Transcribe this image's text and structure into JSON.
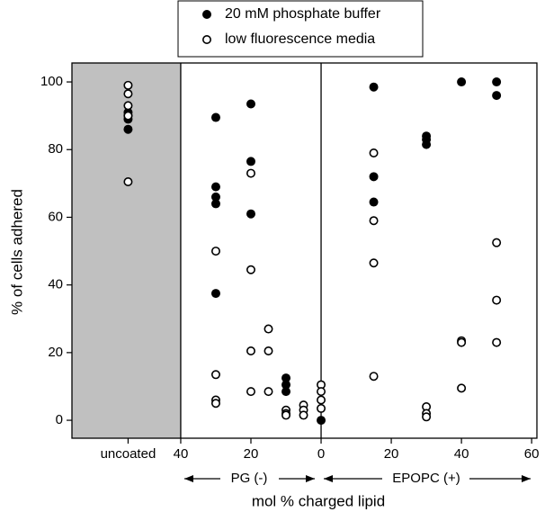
{
  "chart_data": {
    "type": "scatter",
    "xlabel": "mol % charged lipid",
    "ylabel": "% of cells adhered",
    "xlim": [
      -71,
      61.5
    ],
    "ylim": [
      -5.3,
      105.6
    ],
    "xticks": [
      {
        "value": -55,
        "label": "uncoated"
      },
      {
        "value": -40,
        "label": "40"
      },
      {
        "value": -20,
        "label": "20"
      },
      0,
      20,
      40,
      60
    ],
    "yticks": [
      0,
      20,
      40,
      60,
      80,
      100
    ],
    "shaded_region": [
      -71,
      -40
    ],
    "shade_color": "#c0c0c0",
    "dividers": [
      -40,
      0
    ],
    "annotations": [
      "PG (-)",
      "EPOPC (+)"
    ],
    "legend": "top",
    "series": [
      {
        "name": "20 mM phosphate buffer",
        "color": "#000000",
        "filled": true,
        "x": [
          -55,
          -55,
          -55,
          -55,
          -30,
          -30,
          -30,
          -30,
          -30,
          -20,
          -20,
          -20,
          -10,
          -10,
          -10,
          0,
          15,
          15,
          15,
          30,
          30,
          30,
          40,
          50,
          50
        ],
        "values": [
          91,
          90,
          89,
          86,
          89.5,
          69,
          66,
          64,
          37.5,
          93.5,
          76.5,
          61,
          12.5,
          10.5,
          8.5,
          0,
          98.5,
          72,
          64.5,
          84,
          83,
          81.5,
          100,
          100,
          96
        ]
      },
      {
        "name": "low fluorescence media",
        "color": "#000000",
        "filled": false,
        "x": [
          -55,
          -55,
          -55,
          -55,
          -55,
          -30,
          -30,
          -30,
          -30,
          -20,
          -20,
          -20,
          -20,
          -15,
          -15,
          -15,
          -10,
          -10,
          -10,
          -5,
          -5,
          -5,
          0,
          0,
          0,
          0,
          15,
          15,
          15,
          15,
          30,
          30,
          30,
          40,
          40,
          40,
          50,
          50,
          50
        ],
        "values": [
          99,
          96.5,
          93,
          90,
          70.5,
          50,
          13.5,
          6,
          5,
          73,
          44.5,
          20.5,
          8.5,
          27,
          20.5,
          8.5,
          3,
          2,
          1.5,
          4.5,
          3,
          1.5,
          10.5,
          8.5,
          6,
          3.5,
          79,
          59,
          46.5,
          13,
          4,
          2,
          1,
          23.5,
          23,
          9.5,
          52.5,
          35.5,
          23
        ]
      }
    ]
  }
}
